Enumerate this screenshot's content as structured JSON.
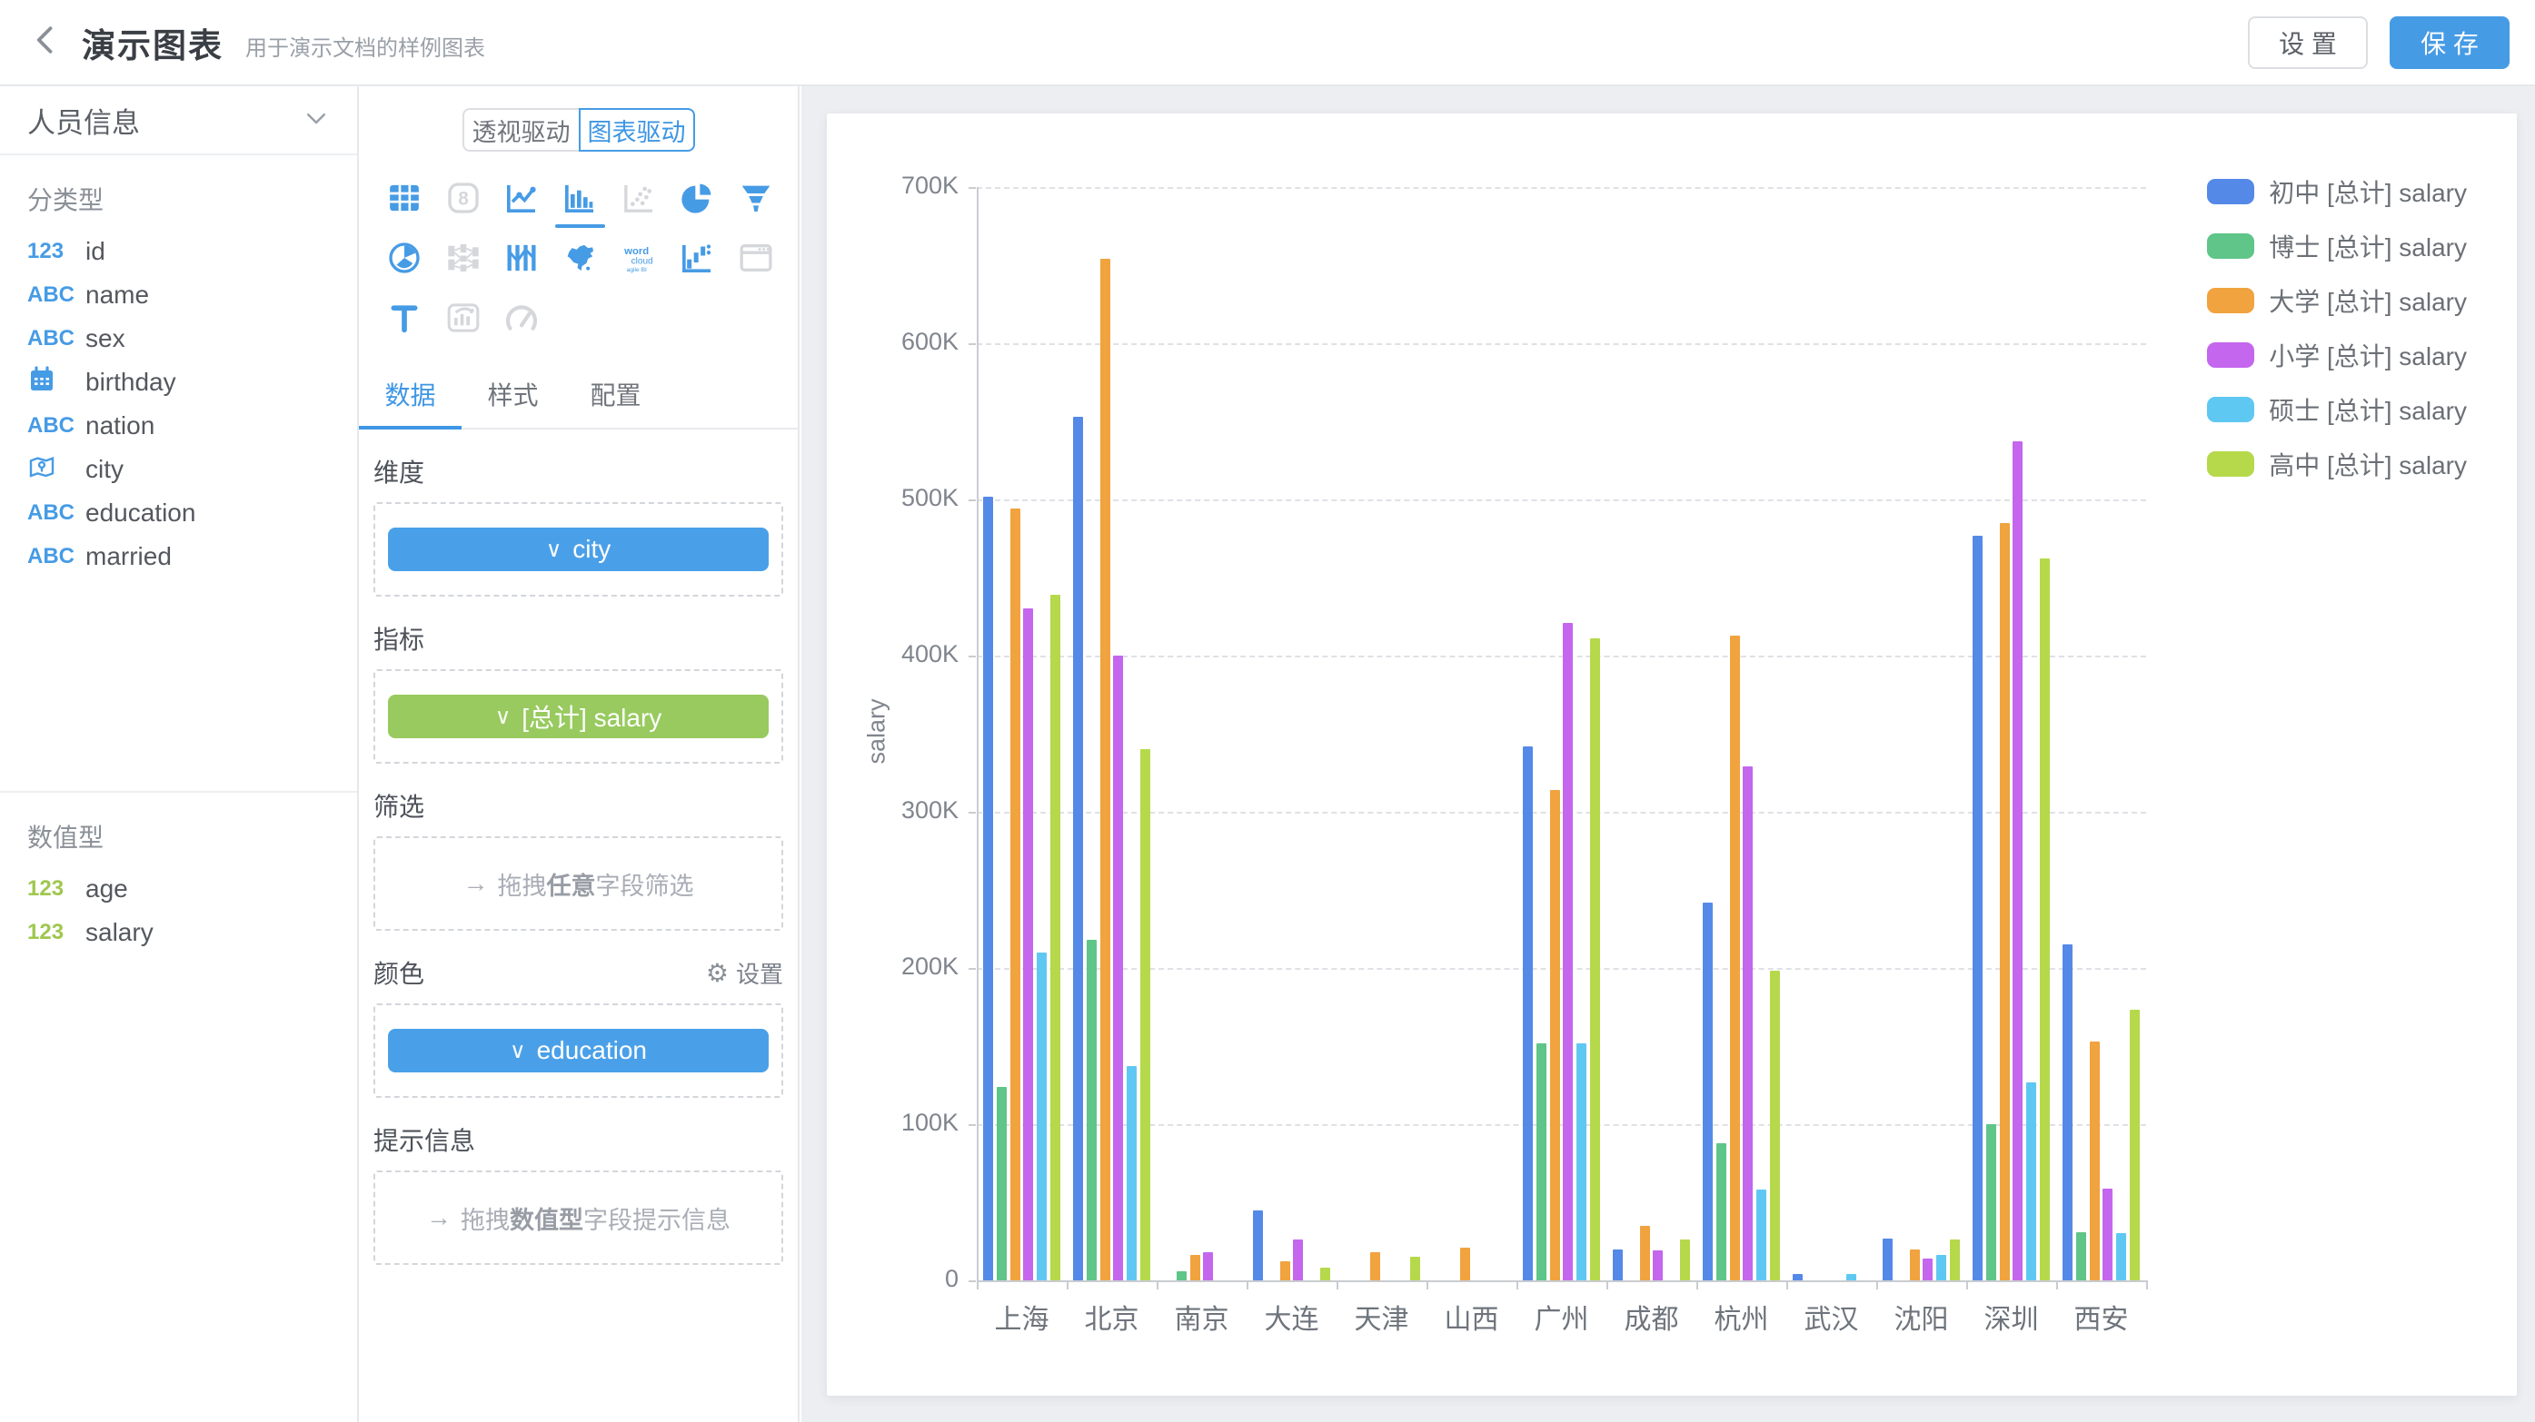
{
  "header": {
    "title": "演示图表",
    "subtitle": "用于演示文档的样例图表",
    "settings_label": "设 置",
    "save_label": "保 存"
  },
  "icons": {
    "arrow_right": "→",
    "gear": "⚙",
    "chevron_down": "∨"
  },
  "colors": {
    "accent_blue": "#469BE5",
    "dimension_pill_blue": "#4AA0E8",
    "metric_pill_green": "#98CA5F",
    "canvas_bg": "#ECEEF2"
  },
  "sidebar": {
    "dataset_name": "人员信息",
    "sections": [
      {
        "label": "分类型",
        "fields": [
          {
            "icon": "num-blue",
            "name": "id"
          },
          {
            "icon": "abc",
            "name": "name"
          },
          {
            "icon": "abc",
            "name": "sex"
          },
          {
            "icon": "calendar",
            "name": "birthday"
          },
          {
            "icon": "abc",
            "name": "nation"
          },
          {
            "icon": "geo",
            "name": "city"
          },
          {
            "icon": "abc",
            "name": "education"
          },
          {
            "icon": "abc",
            "name": "married"
          }
        ]
      },
      {
        "label": "数值型",
        "fields": [
          {
            "icon": "num-green",
            "name": "age"
          },
          {
            "icon": "num-green",
            "name": "salary"
          }
        ]
      }
    ]
  },
  "panel": {
    "mode_tabs": [
      {
        "label": "透视驱动",
        "active": false
      },
      {
        "label": "图表驱动",
        "active": true
      }
    ],
    "chart_types": [
      {
        "name": "table",
        "state": "enabled"
      },
      {
        "name": "scorecard",
        "state": "disabled"
      },
      {
        "name": "line-chart",
        "state": "enabled"
      },
      {
        "name": "bar-chart",
        "state": "selected"
      },
      {
        "name": "scatter-chart",
        "state": "disabled"
      },
      {
        "name": "pie-chart",
        "state": "enabled"
      },
      {
        "name": "funnel-chart",
        "state": "enabled"
      },
      {
        "name": "radar-chart",
        "state": "enabled"
      },
      {
        "name": "sankey-chart",
        "state": "disabled"
      },
      {
        "name": "parallel-chart",
        "state": "enabled"
      },
      {
        "name": "china-map",
        "state": "enabled"
      },
      {
        "name": "word-cloud",
        "state": "enabled"
      },
      {
        "name": "waterfall-chart",
        "state": "enabled"
      },
      {
        "name": "iframe-embed",
        "state": "disabled"
      },
      {
        "name": "text-chart",
        "state": "enabled"
      },
      {
        "name": "rich-text-chart",
        "state": "disabled"
      },
      {
        "name": "gauge-chart",
        "state": "disabled"
      }
    ],
    "config_tabs": [
      {
        "label": "数据",
        "active": true
      },
      {
        "label": "样式",
        "active": false
      },
      {
        "label": "配置",
        "active": false
      }
    ],
    "sections": {
      "dimension_label": "维度",
      "dimension_pill": "city",
      "metric_label": "指标",
      "metric_pill": "[总计] salary",
      "filter_label": "筛选",
      "filter_hint_prefix": "拖拽",
      "filter_hint_strong": "任意",
      "filter_hint_suffix": "字段筛选",
      "color_label": "颜色",
      "color_settings_label": "设置",
      "color_pill": "education",
      "tooltip_label": "提示信息",
      "tooltip_hint_prefix": "拖拽",
      "tooltip_hint_strong": "数值型",
      "tooltip_hint_suffix": "字段提示信息"
    }
  },
  "chart_data": {
    "type": "bar",
    "title": "",
    "xlabel": "",
    "ylabel": "salary",
    "value_unit": "K",
    "ylim": [
      0,
      700
    ],
    "ytick_step": 100,
    "grid": true,
    "legend_position": "right",
    "categories": [
      "上海",
      "北京",
      "南京",
      "大连",
      "天津",
      "山西",
      "广州",
      "成都",
      "杭州",
      "武汉",
      "沈阳",
      "深圳",
      "西安"
    ],
    "series": [
      {
        "name": "初中 [总计] salary",
        "color": "#5589E8",
        "values": [
          502,
          553,
          0,
          45,
          0,
          0,
          342,
          20,
          242,
          4,
          27,
          477,
          215
        ]
      },
      {
        "name": "博士 [总计] salary",
        "color": "#5FC588",
        "values": [
          124,
          218,
          6,
          0,
          0,
          0,
          152,
          0,
          88,
          0,
          0,
          100,
          31
        ]
      },
      {
        "name": "大学 [总计] salary",
        "color": "#F0A33E",
        "values": [
          494,
          654,
          16,
          12,
          18,
          21,
          314,
          35,
          413,
          0,
          20,
          485,
          153
        ]
      },
      {
        "name": "小学 [总计] salary",
        "color": "#C466EE",
        "values": [
          430,
          400,
          18,
          26,
          0,
          0,
          421,
          19,
          329,
          0,
          14,
          537,
          59
        ]
      },
      {
        "name": "硕士 [总计] salary",
        "color": "#5FC8F2",
        "values": [
          210,
          137,
          0,
          0,
          0,
          0,
          152,
          0,
          58,
          4,
          16,
          127,
          30
        ]
      },
      {
        "name": "高中 [总计] salary",
        "color": "#B5D94B",
        "values": [
          439,
          340,
          0,
          8,
          15,
          0,
          411,
          26,
          198,
          0,
          26,
          462,
          173
        ]
      }
    ]
  }
}
